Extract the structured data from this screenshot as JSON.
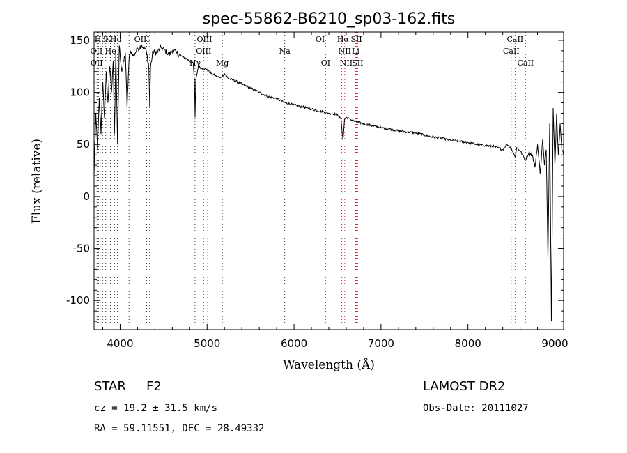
{
  "chart_data": {
    "type": "line",
    "title": "spec-55862-B6210_sp03-162.fits",
    "xlabel": "Wavelength (Å)",
    "ylabel": "Flux (relative)",
    "xlim": [
      3700,
      9100
    ],
    "ylim": [
      -128,
      158
    ],
    "xticks": [
      4000,
      5000,
      6000,
      7000,
      8000,
      9000
    ],
    "yticks": [
      -100,
      -50,
      0,
      50,
      100,
      150
    ],
    "grid": false,
    "series": [
      {
        "color": "#000000",
        "x": [
          3700,
          3720,
          3740,
          3760,
          3780,
          3800,
          3820,
          3840,
          3860,
          3880,
          3900,
          3920,
          3935,
          3950,
          3970,
          3990,
          4020,
          4060,
          4080,
          4101,
          4120,
          4150,
          4200,
          4250,
          4300,
          4330,
          4340,
          4350,
          4380,
          4420,
          4470,
          4520,
          4560,
          4600,
          4650,
          4700,
          4750,
          4800,
          4840,
          4855,
          4862,
          4870,
          4900,
          4950,
          5000,
          5050,
          5100,
          5150,
          5200,
          5250,
          5300,
          5400,
          5500,
          5600,
          5700,
          5800,
          5900,
          6000,
          6100,
          6200,
          6300,
          6400,
          6500,
          6540,
          6563,
          6580,
          6600,
          6700,
          6800,
          6900,
          7000,
          7100,
          7200,
          7300,
          7400,
          7500,
          7600,
          7700,
          7800,
          7900,
          8000,
          8100,
          8200,
          8300,
          8400,
          8450,
          8500,
          8542,
          8560,
          8600,
          8662,
          8700,
          8740,
          8770,
          8800,
          8830,
          8860,
          8880,
          8900,
          8920,
          8940,
          8960,
          8980,
          9000,
          9020,
          9040,
          9060,
          9080,
          9100
        ],
        "y": [
          20,
          80,
          45,
          95,
          60,
          110,
          75,
          120,
          90,
          125,
          100,
          130,
          60,
          140,
          50,
          145,
          120,
          138,
          85,
          130,
          140,
          135,
          142,
          145,
          140,
          125,
          85,
          125,
          140,
          138,
          143,
          140,
          136,
          140,
          138,
          135,
          133,
          130,
          128,
          110,
          76,
          112,
          125,
          123,
          122,
          118,
          116,
          114,
          118,
          113,
          112,
          108,
          104,
          100,
          96,
          94,
          90,
          88,
          86,
          84,
          82,
          80,
          79,
          74,
          54,
          74,
          76,
          72,
          70,
          68,
          66,
          65,
          63,
          62,
          61,
          59,
          57,
          56,
          54,
          53,
          52,
          50,
          49,
          48,
          45,
          50,
          46,
          38,
          47,
          44,
          35,
          42,
          40,
          28,
          50,
          22,
          55,
          30,
          45,
          -60,
          70,
          -120,
          85,
          30,
          80,
          40,
          70,
          45,
          40
        ]
      }
    ],
    "line_markers": [
      {
        "label": "Hβ",
        "x": 3770,
        "row": 0
      },
      {
        "label": "K",
        "x": 3860,
        "row": 0
      },
      {
        "label": "Hd",
        "x": 3950,
        "row": 0
      },
      {
        "label": "OIII",
        "x": 4250,
        "row": 0
      },
      {
        "label": "OII",
        "x": 3727,
        "row": 1
      },
      {
        "label": "He",
        "x": 3890,
        "row": 1
      },
      {
        "label": "OII",
        "x": 3730,
        "row": 2
      },
      {
        "label": "OIII",
        "x": 4970,
        "row": 0
      },
      {
        "label": "OIII",
        "x": 4960,
        "row": 1
      },
      {
        "label": "Hγ",
        "x": 4862,
        "row": 2
      },
      {
        "label": "Mg",
        "x": 5175,
        "row": 2
      },
      {
        "label": "Na",
        "x": 5893,
        "row": 1
      },
      {
        "label": "OI",
        "x": 6300,
        "row": 0
      },
      {
        "label": "OI",
        "x": 6363,
        "row": 2
      },
      {
        "label": "Hα",
        "x": 6563,
        "row": 0
      },
      {
        "label": "SII",
        "x": 6717,
        "row": 0
      },
      {
        "label": "NII",
        "x": 6583,
        "row": 1
      },
      {
        "label": "Li",
        "x": 6708,
        "row": 1
      },
      {
        "label": "NII",
        "x": 6600,
        "row": 2
      },
      {
        "label": "SII",
        "x": 6731,
        "row": 2
      },
      {
        "label": "CaII",
        "x": 8542,
        "row": 0
      },
      {
        "label": "CaII",
        "x": 8498,
        "row": 1
      },
      {
        "label": "CaII",
        "x": 8662,
        "row": 2
      }
    ],
    "marker_lines_black": [
      3734,
      3750,
      3770,
      3798,
      3835,
      3889,
      3934,
      3970,
      4102,
      4304,
      4340,
      4861,
      4959,
      5007,
      5175,
      5893
    ],
    "marker_lines_red": [
      6300,
      6363,
      6548,
      6563,
      6583,
      6708,
      6717,
      6731,
      8498,
      8542,
      8662
    ]
  },
  "info": {
    "class": "STAR",
    "subclass": "F2",
    "survey": "LAMOST  DR2",
    "cz": "cz = 19.2 ± 31.5 km/s",
    "obs_date": "Obs-Date: 20111027",
    "radec": "RA =  59.11551, DEC =  28.49332"
  }
}
